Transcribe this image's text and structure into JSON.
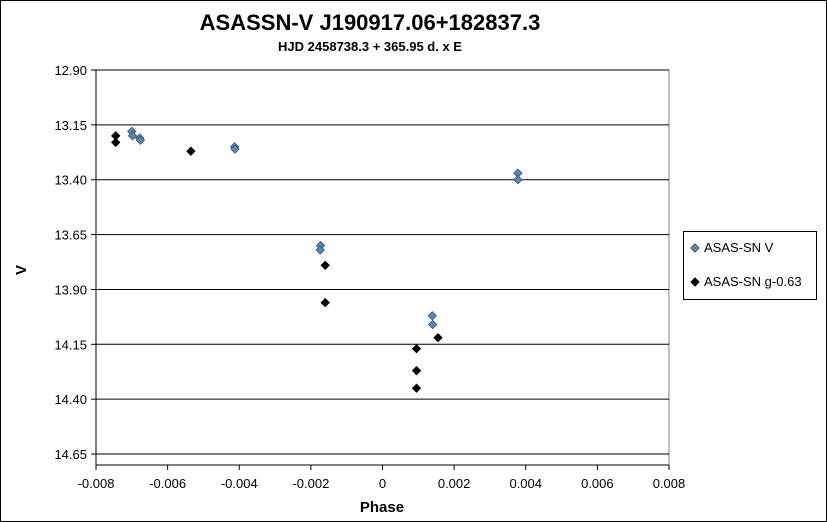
{
  "chart_data": {
    "type": "scatter",
    "title": "ASASSN-V J190917.06+182837.3",
    "subtitle": "HJD 2458738.3 + 365.95 d. x E",
    "xlabel": "Phase",
    "ylabel": "V",
    "xlim": [
      -0.008,
      0.008
    ],
    "ylim": [
      14.7,
      12.9
    ],
    "y_inverted": true,
    "xticks": [
      "-0.008",
      "-0.006",
      "-0.004",
      "-0.002",
      "0",
      "0.002",
      "0.004",
      "0.006",
      "0.008"
    ],
    "yticks": [
      "12.90",
      "13.15",
      "13.40",
      "13.65",
      "13.90",
      "14.15",
      "14.40",
      "14.65"
    ],
    "grid": "horizontal",
    "legend_position": "right",
    "series": [
      {
        "name": "ASAS-SN V",
        "color": "#5b84b1",
        "marker": "diamond",
        "points": [
          [
            -0.007,
            13.18
          ],
          [
            -0.00698,
            13.2
          ],
          [
            -0.00678,
            13.21
          ],
          [
            -0.00676,
            13.22
          ],
          [
            -0.00413,
            13.25
          ],
          [
            -0.00412,
            13.26
          ],
          [
            -0.00173,
            13.7
          ],
          [
            -0.00174,
            13.72
          ],
          [
            0.00139,
            14.02
          ],
          [
            0.0014,
            14.06
          ],
          [
            0.00378,
            13.37
          ],
          [
            0.00378,
            13.4
          ]
        ]
      },
      {
        "name": "ASAS-SN g-0.63",
        "color": "#000000",
        "marker": "diamond",
        "points": [
          [
            -0.00745,
            13.2
          ],
          [
            -0.00745,
            13.23
          ],
          [
            -0.00535,
            13.27
          ],
          [
            -0.0016,
            13.79
          ],
          [
            -0.0016,
            13.96
          ],
          [
            0.00095,
            14.17
          ],
          [
            0.00095,
            14.27
          ],
          [
            0.00095,
            14.35
          ],
          [
            0.00155,
            14.12
          ]
        ]
      }
    ]
  }
}
